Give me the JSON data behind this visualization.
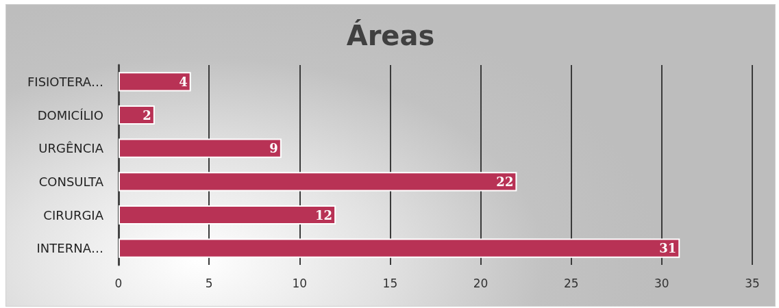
{
  "chart_data": {
    "type": "bar",
    "orientation": "horizontal",
    "title": "Áreas",
    "categories": [
      "FISIOTERA…",
      "DOMICÍLIO",
      "URGÊNCIA",
      "CONSULTA",
      "CIRURGIA",
      "INTERNA…"
    ],
    "values": [
      4,
      2,
      9,
      22,
      12,
      31
    ],
    "color": "#b83255",
    "xlim": [
      0,
      35
    ],
    "xticks": [
      0,
      5,
      10,
      15,
      20,
      25,
      30,
      35
    ],
    "grid": "x",
    "data_labels": true
  }
}
